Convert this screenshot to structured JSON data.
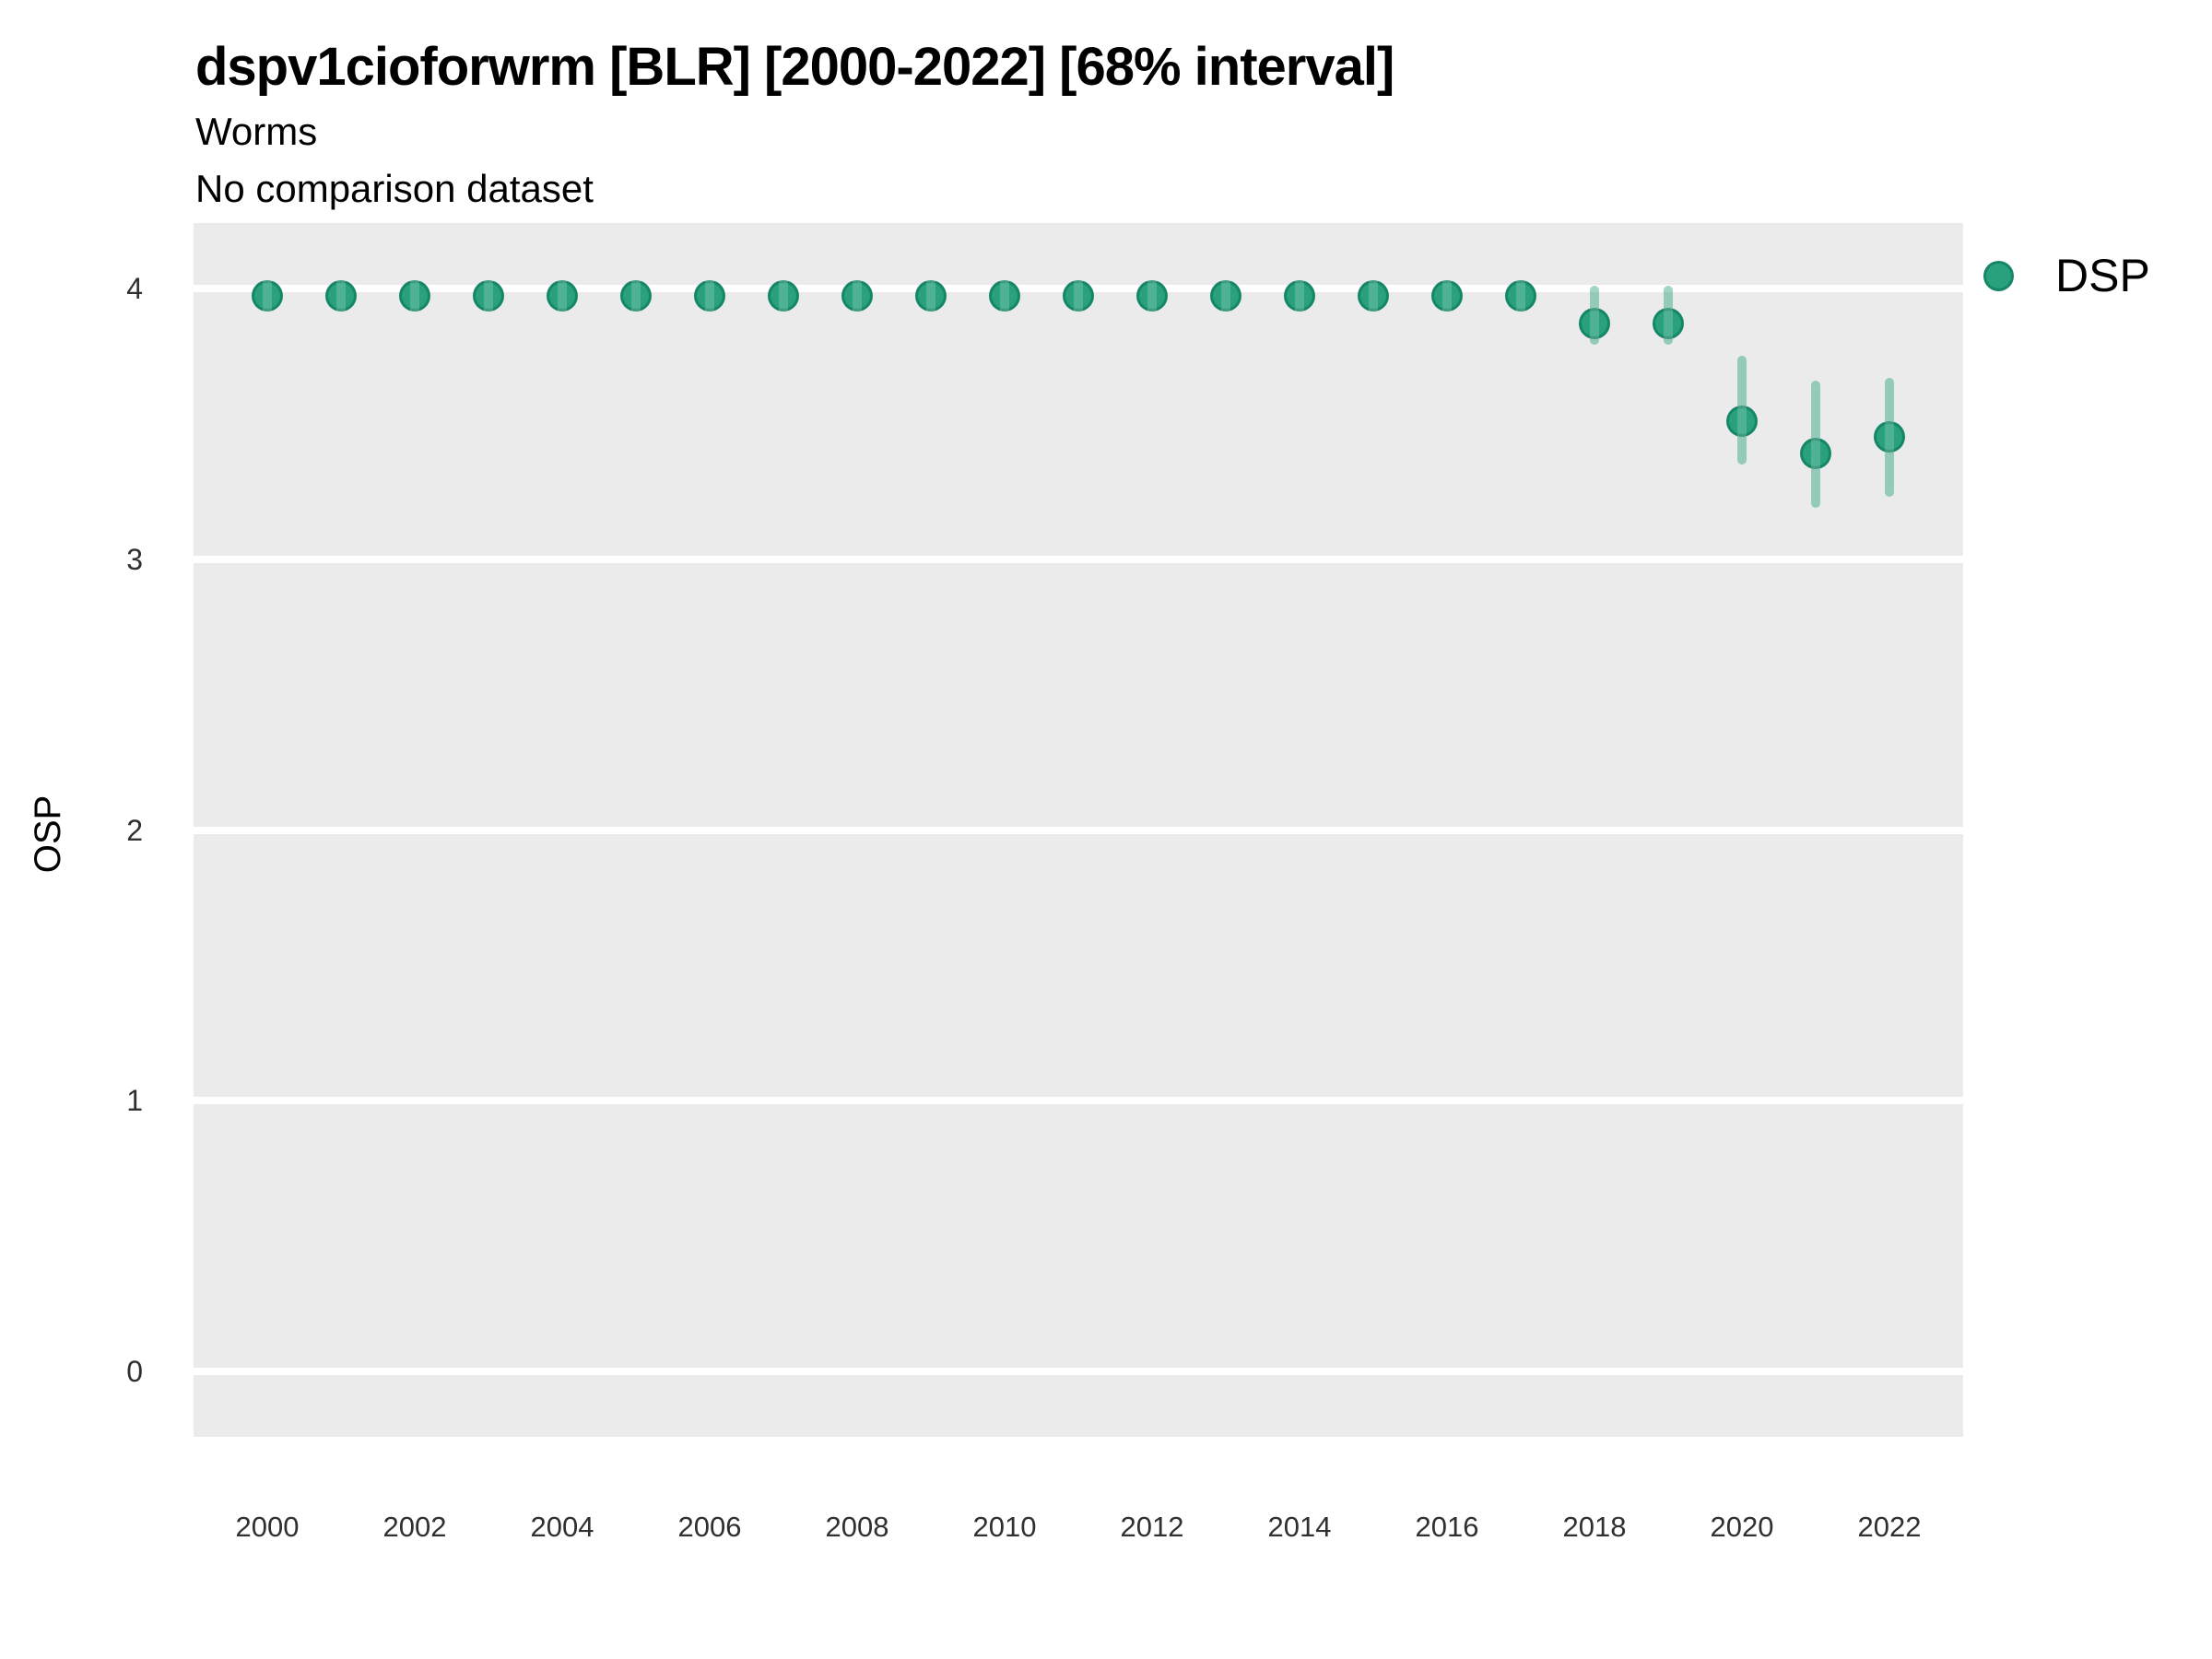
{
  "chart_data": {
    "type": "scatter",
    "subtype": "pointrange",
    "title": "dspv1cioforwrm [BLR] [2000-2022] [68% interval]",
    "subtitle": "Worms",
    "subtitle2": "No comparison dataset",
    "xlabel": "",
    "ylabel": "OSP",
    "legend": {
      "position": "right-top",
      "entries": [
        {
          "label": "DSP",
          "color": "#28A17C"
        }
      ]
    },
    "x": [
      2000,
      2001,
      2002,
      2003,
      2004,
      2005,
      2006,
      2007,
      2008,
      2009,
      2010,
      2011,
      2012,
      2013,
      2014,
      2015,
      2016,
      2017,
      2018,
      2019,
      2020,
      2021,
      2022
    ],
    "series": [
      {
        "name": "DSP",
        "values": [
          3.97,
          3.97,
          3.97,
          3.97,
          3.97,
          3.97,
          3.97,
          3.97,
          3.97,
          3.97,
          3.97,
          3.97,
          3.97,
          3.97,
          3.97,
          3.97,
          3.97,
          3.97,
          3.87,
          3.87,
          3.51,
          3.39,
          3.45
        ],
        "lower_68": [
          3.93,
          3.93,
          3.93,
          3.93,
          3.93,
          3.93,
          3.93,
          3.93,
          3.93,
          3.93,
          3.93,
          3.93,
          3.93,
          3.93,
          3.93,
          3.93,
          3.93,
          3.92,
          3.79,
          3.79,
          3.35,
          3.19,
          3.23
        ],
        "upper_68": [
          4.0,
          4.0,
          4.0,
          4.0,
          4.0,
          4.0,
          4.0,
          4.0,
          4.0,
          4.0,
          4.0,
          4.0,
          4.0,
          4.0,
          4.0,
          4.0,
          4.0,
          4.0,
          4.01,
          4.01,
          3.75,
          3.66,
          3.67
        ]
      }
    ],
    "x_ticks": [
      2000,
      2002,
      2004,
      2006,
      2008,
      2010,
      2012,
      2014,
      2016,
      2018,
      2020,
      2022
    ],
    "y_ticks": [
      0,
      1,
      2,
      3,
      4
    ],
    "xlim": [
      1999,
      2023
    ],
    "ylim": [
      -0.24,
      4.24
    ],
    "grid": "horizontal-major-only",
    "legend_on": true,
    "colors": {
      "panel_bg": "#EBEBEB",
      "gridline": "#FFFFFF",
      "point_fill": "#28A17C",
      "point_border": "rgba(18,128,95,0.8)",
      "interval": "rgba(27,158,119,0.42)",
      "axis_text": "#303030",
      "title_text": "#000000"
    }
  }
}
